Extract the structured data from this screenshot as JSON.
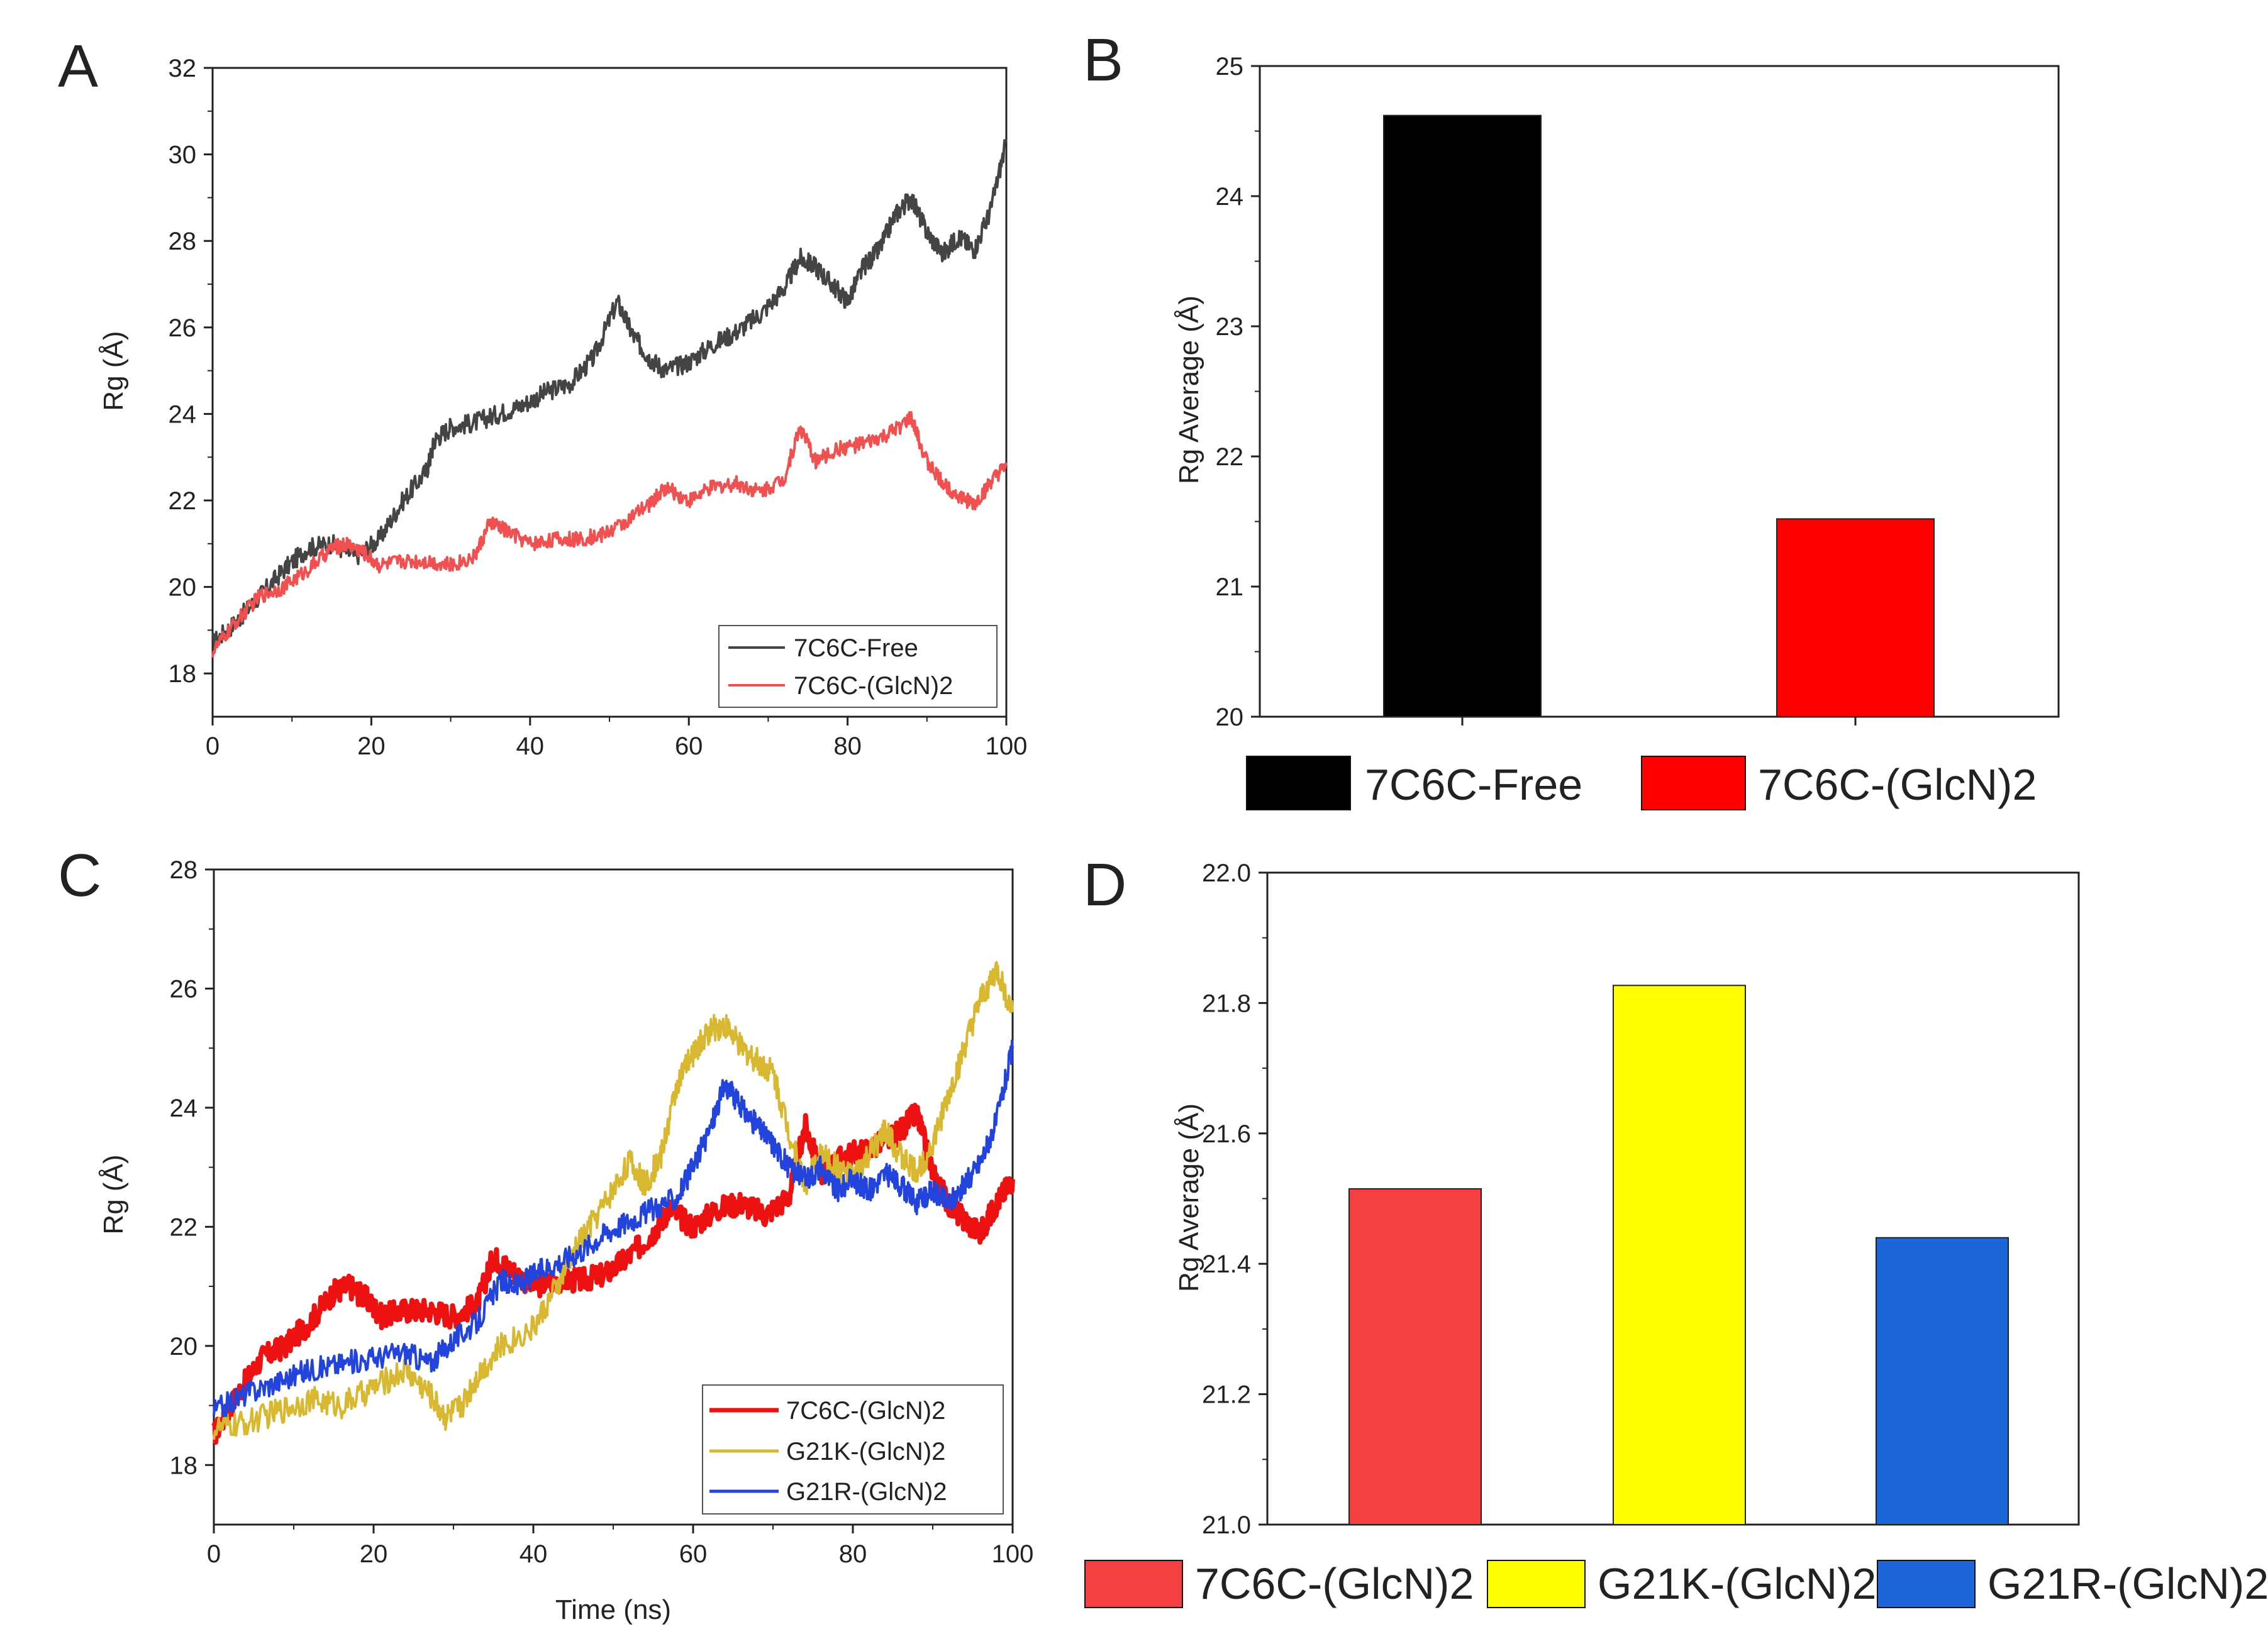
{
  "figure": {
    "panels": [
      "A",
      "B",
      "C",
      "D"
    ]
  },
  "chart_data": [
    {
      "id": "A",
      "type": "line",
      "panel_label": "A",
      "title": "",
      "xlabel": "",
      "ylabel": "Rg (Å)",
      "xlim": [
        0,
        100
      ],
      "ylim": [
        17,
        32
      ],
      "xticks": [
        0,
        20,
        40,
        60,
        80,
        100
      ],
      "yticks": [
        18,
        20,
        22,
        24,
        26,
        28,
        30,
        32
      ],
      "legend_position": "bottom-right",
      "series": [
        {
          "name": "7C6C-Free",
          "color": "#444444",
          "x": [
            0,
            3,
            6,
            9,
            12,
            15,
            18,
            21,
            24,
            27,
            28,
            30,
            33,
            36,
            39,
            42,
            45,
            48,
            51,
            53,
            55,
            57,
            60,
            63,
            66,
            69,
            72,
            74,
            76,
            78,
            80,
            82,
            84,
            86,
            88,
            90,
            92,
            94,
            96,
            98,
            100
          ],
          "values": [
            18.7,
            19.2,
            19.8,
            20.4,
            20.9,
            21.0,
            20.7,
            21.1,
            22.0,
            22.7,
            23.4,
            23.7,
            23.8,
            24.0,
            24.2,
            24.5,
            24.7,
            25.3,
            26.6,
            25.8,
            25.3,
            25.0,
            25.2,
            25.6,
            25.9,
            26.3,
            26.9,
            27.6,
            27.4,
            27.0,
            26.6,
            27.4,
            27.8,
            28.6,
            29.0,
            28.2,
            27.7,
            28.1,
            27.8,
            28.7,
            30.3
          ]
        },
        {
          "name": "7C6C-(GlcN)2",
          "color": "#f05050",
          "x": [
            0,
            3,
            6,
            9,
            12,
            15,
            17,
            19,
            21,
            24,
            27,
            30,
            33,
            35,
            37,
            40,
            43,
            46,
            49,
            52,
            55,
            57,
            60,
            63,
            66,
            69,
            72,
            74,
            76,
            79,
            82,
            85,
            88,
            90,
            92,
            94,
            96,
            98,
            100
          ],
          "values": [
            18.5,
            19.2,
            19.8,
            20.0,
            20.4,
            20.9,
            21.0,
            20.8,
            20.5,
            20.6,
            20.6,
            20.5,
            20.7,
            21.5,
            21.3,
            21.0,
            21.1,
            21.1,
            21.2,
            21.5,
            21.9,
            22.3,
            22.0,
            22.3,
            22.4,
            22.2,
            22.5,
            23.7,
            22.9,
            23.2,
            23.3,
            23.5,
            23.9,
            22.9,
            22.4,
            22.1,
            21.9,
            22.4,
            22.8
          ]
        }
      ]
    },
    {
      "id": "B",
      "type": "bar",
      "panel_label": "B",
      "title": "",
      "xlabel": "",
      "ylabel": "Rg Average (Å)",
      "ylim": [
        20,
        25
      ],
      "yticks": [
        20,
        21,
        22,
        23,
        24,
        25
      ],
      "categories": [
        "7C6C-Free",
        "7C6C-(GlcN)2"
      ],
      "values": [
        24.62,
        21.52
      ],
      "colors": [
        "#000000",
        "#ff0000"
      ],
      "legend_position": "bottom"
    },
    {
      "id": "C",
      "type": "line",
      "panel_label": "C",
      "title": "",
      "xlabel": "Time (ns)",
      "ylabel": "Rg (Å)",
      "xlim": [
        0,
        100
      ],
      "ylim": [
        17,
        28
      ],
      "xticks": [
        0,
        20,
        40,
        60,
        80,
        100
      ],
      "yticks": [
        18,
        20,
        22,
        24,
        26,
        28
      ],
      "legend_position": "bottom-right",
      "series": [
        {
          "name": "7C6C-(GlcN)2",
          "color": "#ee1111",
          "x": [
            0,
            3,
            6,
            9,
            12,
            15,
            17,
            19,
            21,
            24,
            27,
            30,
            33,
            35,
            37,
            40,
            43,
            46,
            49,
            52,
            55,
            57,
            60,
            63,
            66,
            69,
            72,
            74,
            76,
            79,
            82,
            85,
            88,
            90,
            92,
            94,
            96,
            98,
            100
          ],
          "values": [
            18.5,
            19.2,
            19.8,
            20.0,
            20.4,
            20.9,
            21.0,
            20.8,
            20.5,
            20.6,
            20.6,
            20.5,
            20.7,
            21.5,
            21.3,
            21.0,
            21.1,
            21.1,
            21.2,
            21.5,
            21.9,
            22.3,
            22.0,
            22.3,
            22.4,
            22.2,
            22.5,
            23.7,
            22.9,
            23.2,
            23.3,
            23.5,
            23.9,
            22.9,
            22.4,
            22.1,
            21.9,
            22.4,
            22.8
          ]
        },
        {
          "name": "G21K-(GlcN)2",
          "color": "#d8b830",
          "x": [
            0,
            4,
            8,
            12,
            16,
            20,
            24,
            27,
            29,
            31,
            33,
            36,
            40,
            43,
            46,
            49,
            52,
            54,
            56,
            58,
            60,
            62,
            64,
            66,
            68,
            70,
            72,
            74,
            76,
            78,
            80,
            82,
            84,
            86,
            88,
            90,
            92,
            94,
            96,
            98,
            100
          ],
          "values": [
            18.6,
            18.7,
            18.9,
            19.1,
            19.0,
            19.3,
            19.6,
            19.2,
            18.8,
            19.0,
            19.5,
            20.0,
            20.3,
            21.0,
            21.8,
            22.4,
            23.1,
            22.7,
            23.2,
            24.4,
            24.9,
            25.3,
            25.4,
            25.0,
            24.8,
            24.6,
            23.6,
            22.7,
            23.2,
            23.0,
            22.8,
            23.2,
            23.6,
            23.2,
            22.9,
            23.4,
            24.2,
            25.0,
            25.8,
            26.3,
            25.6
          ]
        },
        {
          "name": "G21R-(GlcN)2",
          "color": "#2244dd",
          "x": [
            0,
            4,
            8,
            12,
            16,
            20,
            24,
            27,
            30,
            33,
            36,
            38,
            40,
            43,
            46,
            49,
            52,
            55,
            58,
            60,
            62,
            64,
            66,
            68,
            70,
            72,
            74,
            76,
            78,
            80,
            82,
            84,
            86,
            88,
            90,
            92,
            94,
            96,
            98,
            100
          ],
          "values": [
            18.9,
            19.2,
            19.4,
            19.6,
            19.7,
            19.8,
            19.9,
            19.7,
            20.1,
            20.4,
            21.1,
            21.0,
            21.2,
            21.4,
            21.6,
            21.9,
            22.1,
            22.3,
            22.5,
            23.0,
            23.6,
            24.4,
            24.0,
            23.7,
            23.4,
            23.0,
            22.8,
            23.0,
            22.6,
            22.8,
            22.6,
            22.9,
            22.7,
            22.4,
            22.6,
            22.4,
            22.7,
            23.1,
            23.8,
            25.0
          ]
        }
      ]
    },
    {
      "id": "D",
      "type": "bar",
      "panel_label": "D",
      "title": "",
      "xlabel": "",
      "ylabel": "Rg Average (Å)",
      "ylim": [
        21.0,
        22.0
      ],
      "yticks": [
        "21.0",
        "21.2",
        "21.4",
        "21.6",
        "21.8",
        "22.0"
      ],
      "categories": [
        "7C6C-(GlcN)2",
        "G21K-(GlcN)2",
        "G21R-(GlcN)2"
      ],
      "values": [
        21.515,
        21.827,
        21.44
      ],
      "colors": [
        "#f44040",
        "#ffff00",
        "#1c66d8"
      ],
      "legend_position": "bottom"
    }
  ]
}
